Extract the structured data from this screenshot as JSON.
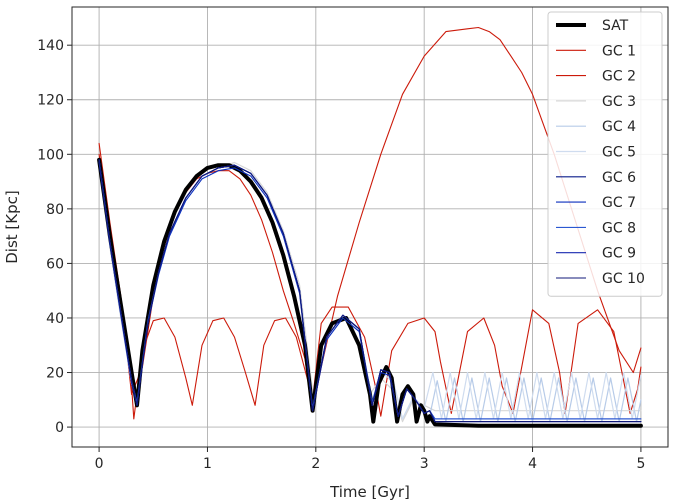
{
  "chart_data": {
    "type": "line",
    "title": "",
    "xlabel": "Time [Gyr]",
    "ylabel": "Dist [Kpc]",
    "xlim": [
      -0.25,
      5.25
    ],
    "ylim": [
      -7.3,
      154
    ],
    "xticks": [
      0,
      1,
      2,
      3,
      4,
      5
    ],
    "yticks": [
      0,
      20,
      40,
      60,
      80,
      100,
      120,
      140
    ],
    "grid": true,
    "legend": "top-right",
    "series": [
      {
        "name": "SAT",
        "color": "#000000",
        "width": 4,
        "x": [
          0,
          0.1,
          0.2,
          0.3,
          0.35,
          0.4,
          0.5,
          0.6,
          0.7,
          0.8,
          0.9,
          1.0,
          1.1,
          1.2,
          1.3,
          1.4,
          1.5,
          1.6,
          1.7,
          1.8,
          1.9,
          1.97,
          2.05,
          2.15,
          2.28,
          2.4,
          2.5,
          2.53,
          2.58,
          2.65,
          2.7,
          2.75,
          2.8,
          2.85,
          2.9,
          2.93,
          2.97,
          3.0,
          3.03,
          3.05,
          3.1,
          3.5,
          4.0,
          4.5,
          5.0
        ],
        "y": [
          98,
          70,
          45,
          20,
          8,
          28,
          52,
          68,
          79,
          87,
          92,
          95,
          96,
          96,
          94,
          90,
          84,
          75,
          63,
          48,
          30,
          6,
          30,
          38,
          40,
          30,
          12,
          2,
          16,
          22,
          18,
          2,
          12,
          15,
          12,
          2,
          8,
          6,
          2,
          4,
          1,
          0.5,
          0.5,
          0.5,
          0.5
        ]
      },
      {
        "name": "GC 1",
        "color": "#cc1a0a",
        "width": 1.1,
        "x": [
          0,
          0.1,
          0.2,
          0.3,
          0.4,
          0.5,
          0.6,
          0.7,
          0.8,
          0.9,
          1.0,
          1.1,
          1.2,
          1.3,
          1.4,
          1.5,
          1.6,
          1.7,
          1.8,
          1.9,
          1.97,
          2.05,
          2.2,
          2.4,
          2.6,
          2.8,
          3.0,
          3.2,
          3.4,
          3.5,
          3.6,
          3.7,
          3.8,
          3.9,
          4.0,
          4.2,
          4.4,
          4.6,
          4.8,
          4.93,
          5.0
        ],
        "y": [
          104,
          75,
          48,
          12,
          22,
          48,
          66,
          78,
          86,
          91,
          93,
          94,
          94,
          91,
          85,
          76,
          64,
          50,
          38,
          25,
          6,
          22,
          48,
          75,
          100,
          122,
          136,
          145,
          146,
          146.5,
          145,
          142,
          136,
          130,
          122,
          100,
          75,
          50,
          28,
          20,
          29
        ]
      },
      {
        "name": "GC 2",
        "color": "#cc1a0a",
        "width": 1.1,
        "x": [
          0,
          0.1,
          0.2,
          0.3,
          0.32,
          0.4,
          0.5,
          0.6,
          0.7,
          0.8,
          0.86,
          0.95,
          1.05,
          1.15,
          1.25,
          1.35,
          1.44,
          1.52,
          1.62,
          1.72,
          1.82,
          1.92,
          1.97,
          2.05,
          2.15,
          2.3,
          2.45,
          2.55,
          2.6,
          2.7,
          2.85,
          3.0,
          3.1,
          3.15,
          3.25,
          3.4,
          3.55,
          3.65,
          3.72,
          3.82,
          4.0,
          4.15,
          4.25,
          4.3,
          4.42,
          4.6,
          4.75,
          4.85,
          4.9,
          4.97,
          5.0
        ],
        "y": [
          100,
          72,
          48,
          15,
          3,
          28,
          39,
          40,
          33,
          18,
          8,
          30,
          39,
          40,
          33,
          20,
          8,
          30,
          39,
          40,
          33,
          18,
          10,
          38,
          44,
          44,
          33,
          15,
          4,
          28,
          38,
          40,
          35,
          24,
          5,
          35,
          40,
          30,
          15,
          5,
          43,
          38,
          20,
          5,
          38,
          43,
          35,
          15,
          5,
          14,
          22
        ]
      },
      {
        "name": "GC 3",
        "color": "#d7d7d7",
        "width": 1.2,
        "x": [
          0,
          0.1,
          0.2,
          0.3,
          0.35,
          0.45,
          0.55,
          0.65,
          0.8,
          0.95,
          1.1,
          1.25,
          1.4,
          1.55,
          1.7,
          1.85,
          1.98,
          2.1,
          2.25,
          2.4,
          2.5,
          2.6,
          2.7,
          2.8,
          2.9,
          3.0,
          3.1,
          3.3,
          3.5,
          3.7,
          3.9,
          4.1,
          4.3,
          4.5,
          4.7,
          4.9,
          5.0
        ],
        "y": [
          96,
          66,
          40,
          16,
          10,
          40,
          58,
          71,
          84,
          92,
          95,
          97,
          94,
          86,
          72,
          52,
          10,
          32,
          40,
          35,
          12,
          18,
          14,
          2,
          10,
          8,
          6,
          6,
          6,
          6,
          6,
          6,
          6,
          6,
          6,
          6,
          6
        ]
      },
      {
        "name": "GC 4",
        "color": "#b7cbe8",
        "width": 1.2,
        "x": [
          0,
          0.1,
          0.2,
          0.3,
          0.35,
          0.45,
          0.55,
          0.65,
          0.8,
          0.95,
          1.1,
          1.25,
          1.4,
          1.55,
          1.7,
          1.85,
          1.97,
          2.1,
          2.25,
          2.4,
          2.52,
          2.62,
          2.72,
          2.8,
          2.9,
          3.0,
          3.04,
          3.12,
          3.2,
          3.28,
          3.36,
          3.44,
          3.52,
          3.6,
          3.68,
          3.76,
          3.84,
          3.92,
          4.0,
          4.08,
          4.16,
          4.24,
          4.32,
          4.4,
          4.48,
          4.56,
          4.64,
          4.72,
          4.8,
          4.88,
          4.96,
          5.0
        ],
        "y": [
          97,
          67,
          41,
          16,
          9,
          38,
          57,
          71,
          84,
          92,
          95,
          96,
          93,
          85,
          71,
          50,
          8,
          33,
          41,
          35,
          10,
          20,
          16,
          3,
          11,
          7,
          2,
          17,
          2,
          18,
          2,
          18,
          2,
          18,
          2,
          18,
          2,
          18,
          2,
          18,
          2,
          18,
          2,
          18,
          2,
          18,
          2,
          18,
          2,
          18,
          2,
          10
        ]
      },
      {
        "name": "GC 5",
        "color": "#cfdcef",
        "width": 1.2,
        "x": [
          0,
          0.1,
          0.2,
          0.3,
          0.35,
          0.45,
          0.55,
          0.65,
          0.8,
          0.95,
          1.1,
          1.25,
          1.4,
          1.55,
          1.7,
          1.85,
          1.97,
          2.1,
          2.25,
          2.4,
          2.52,
          2.62,
          2.72,
          2.8,
          2.9,
          3.0,
          3.08,
          3.16,
          3.24,
          3.32,
          3.4,
          3.48,
          3.56,
          3.64,
          3.72,
          3.8,
          3.88,
          3.96,
          4.04,
          4.12,
          4.2,
          4.28,
          4.36,
          4.44,
          4.52,
          4.6,
          4.68,
          4.76,
          4.84,
          4.92,
          5.0
        ],
        "y": [
          97,
          67,
          41,
          16,
          9,
          38,
          57,
          71,
          84,
          92,
          95,
          96,
          93,
          85,
          71,
          50,
          8,
          33,
          41,
          35,
          10,
          20,
          16,
          3,
          11,
          7,
          20,
          3,
          20,
          3,
          20,
          3,
          20,
          3,
          20,
          3,
          20,
          3,
          20,
          3,
          20,
          3,
          20,
          3,
          20,
          3,
          20,
          3,
          20,
          3,
          19
        ]
      },
      {
        "name": "GC 6",
        "color": "#0a1c8a",
        "width": 1.1,
        "x": [
          0,
          0.1,
          0.2,
          0.3,
          0.35,
          0.45,
          0.55,
          0.65,
          0.8,
          0.95,
          1.1,
          1.25,
          1.4,
          1.55,
          1.7,
          1.85,
          1.97,
          2.1,
          2.25,
          2.4,
          2.52,
          2.6,
          2.68,
          2.76,
          2.84,
          2.92,
          3.0,
          3.05,
          3.1,
          3.5,
          4.0,
          4.5,
          5.0
        ],
        "y": [
          98,
          68,
          42,
          17,
          8,
          38,
          57,
          71,
          84,
          92,
          95,
          96,
          93,
          85,
          71,
          50,
          6,
          33,
          41,
          36,
          8,
          21,
          20,
          4,
          14,
          10,
          5,
          6,
          2,
          2,
          2,
          2,
          2
        ]
      },
      {
        "name": "GC 7",
        "color": "#0a2fbe",
        "width": 1.1,
        "x": [
          0,
          0.1,
          0.2,
          0.3,
          0.35,
          0.45,
          0.55,
          0.65,
          0.8,
          0.95,
          1.1,
          1.25,
          1.4,
          1.55,
          1.7,
          1.85,
          1.97,
          2.1,
          2.25,
          2.4,
          2.52,
          2.6,
          2.68,
          2.76,
          2.84,
          2.92,
          3.0,
          3.05,
          3.1,
          3.5,
          4.0,
          4.5,
          5.0
        ],
        "y": [
          97,
          67,
          41,
          16,
          8,
          38,
          56,
          70,
          83,
          91,
          94,
          95,
          92,
          84,
          70,
          49,
          6,
          32,
          40,
          35,
          8,
          20,
          19,
          4,
          14,
          10,
          5,
          6,
          3,
          3,
          3,
          3,
          3
        ]
      },
      {
        "name": "GC 8",
        "color": "#2b58d1",
        "width": 1.1,
        "x": [
          0,
          0.1,
          0.2,
          0.3,
          0.35,
          0.45,
          0.55,
          0.65,
          0.8,
          0.95,
          1.1,
          1.25,
          1.4,
          1.55,
          1.7,
          1.85,
          1.97,
          2.1,
          2.25,
          2.4,
          2.52,
          2.6,
          2.68,
          2.76,
          2.84,
          2.92,
          3.0,
          3.05,
          3.1,
          3.5,
          4.0,
          4.5,
          5.0
        ],
        "y": [
          98,
          68,
          42,
          17,
          9,
          39,
          57,
          71,
          84,
          92,
          95,
          96,
          93,
          85,
          71,
          50,
          7,
          33,
          41,
          36,
          9,
          21,
          20,
          4,
          14,
          10,
          5,
          6,
          3,
          3,
          3,
          3,
          3
        ]
      },
      {
        "name": "GC 9",
        "color": "#1a2ab0",
        "width": 1.1,
        "x": [
          0,
          0.1,
          0.2,
          0.3,
          0.35,
          0.45,
          0.55,
          0.65,
          0.8,
          0.95,
          1.1,
          1.25,
          1.4,
          1.55,
          1.7,
          1.85,
          1.97,
          2.1,
          2.25,
          2.4,
          2.52,
          2.6,
          2.68,
          2.76,
          2.84,
          2.92,
          3.0,
          3.05,
          3.1,
          3.5,
          4.0,
          4.5,
          5.0
        ],
        "y": [
          98,
          68,
          42,
          17,
          8,
          38,
          57,
          71,
          84,
          92,
          95,
          96,
          93,
          85,
          71,
          50,
          6,
          33,
          41,
          36,
          8,
          21,
          20,
          4,
          14,
          10,
          5,
          6,
          2,
          2,
          2,
          2,
          2
        ]
      },
      {
        "name": "GC 10",
        "color": "#101878",
        "width": 1.1,
        "x": [
          0,
          0.1,
          0.2,
          0.3,
          0.35,
          0.45,
          0.55,
          0.65,
          0.8,
          0.95,
          1.1,
          1.25,
          1.4,
          1.55,
          1.7,
          1.85,
          1.97,
          2.1,
          2.25,
          2.4,
          2.52,
          2.6,
          2.68,
          2.76,
          2.84,
          2.92,
          3.0,
          3.05,
          3.1,
          3.5,
          4.0,
          4.5,
          5.0
        ],
        "y": [
          98,
          68,
          42,
          17,
          8,
          38,
          57,
          71,
          84,
          92,
          95,
          96,
          93,
          85,
          71,
          50,
          6,
          33,
          41,
          36,
          8,
          21,
          20,
          4,
          14,
          10,
          5,
          6,
          2,
          2,
          2,
          2,
          2
        ]
      }
    ]
  }
}
